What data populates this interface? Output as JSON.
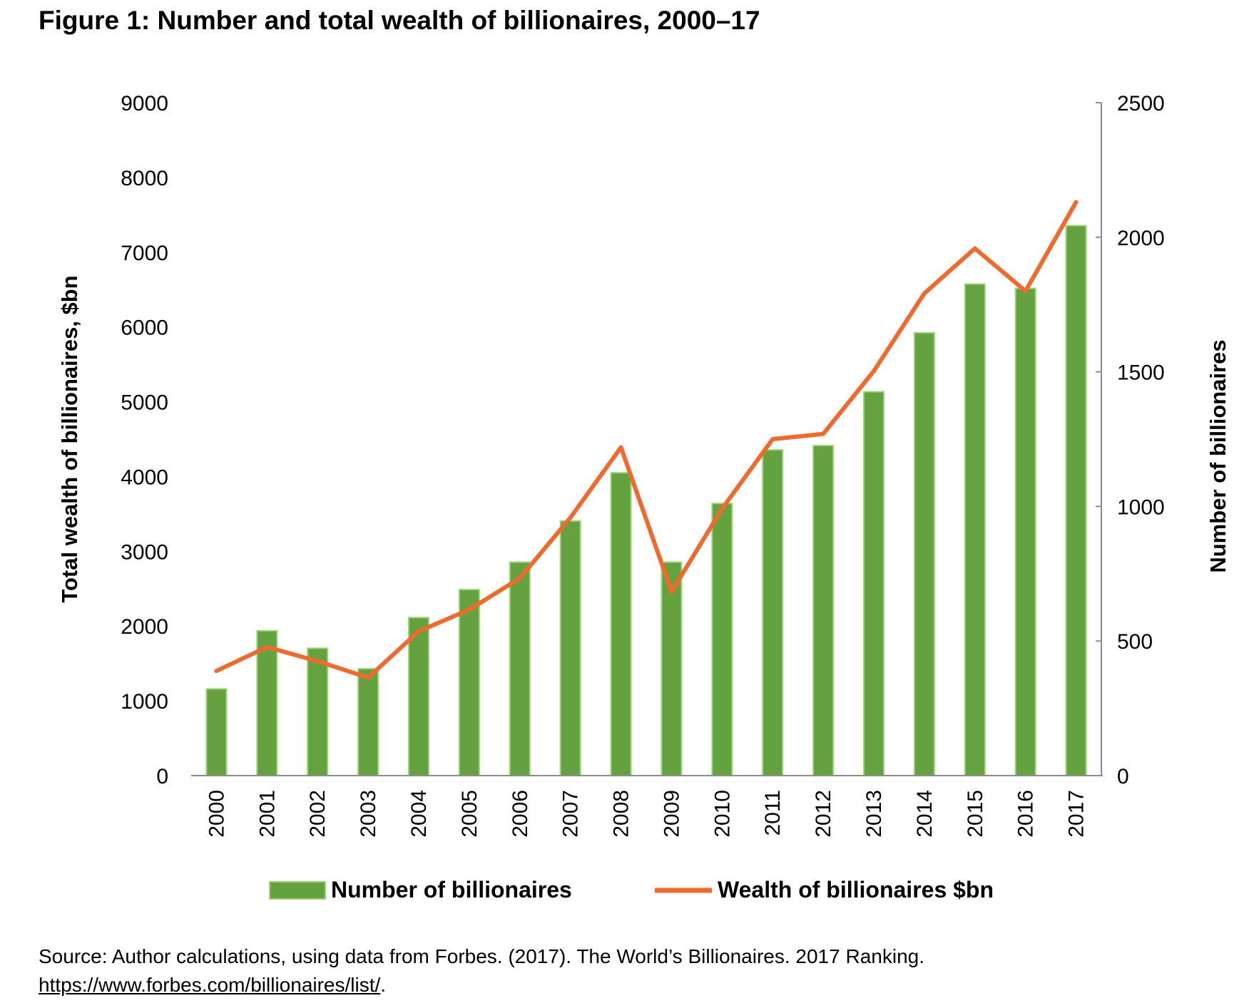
{
  "figure": {
    "title": "Figure 1: Number and total wealth of billionaires, 2000–17",
    "source_text": "Source: Author calculations, using data from Forbes. (2017). The World’s Billionaires. 2017 Ranking.",
    "source_url": "https://www.forbes.com/billionaires/list/",
    "source_end": "."
  },
  "chart_data": {
    "type": "bar",
    "categories": [
      "2000",
      "2001",
      "2002",
      "2003",
      "2004",
      "2005",
      "2006",
      "2007",
      "2008",
      "2009",
      "2010",
      "2011",
      "2012",
      "2013",
      "2014",
      "2015",
      "2016",
      "2017"
    ],
    "series": [
      {
        "name": "Number of billionaires",
        "kind": "bar",
        "axis": "right",
        "color": "#64A23F",
        "edge_color": "#9DD27A",
        "values": [
          322,
          538,
          473,
          397,
          587,
          691,
          793,
          946,
          1125,
          793,
          1011,
          1210,
          1226,
          1426,
          1645,
          1826,
          1810,
          2043
        ]
      },
      {
        "name": "Wealth of billionaires $bn",
        "kind": "line",
        "axis": "left",
        "color": "#EE6A2E",
        "values": [
          1400,
          1720,
          1530,
          1310,
          1930,
          2220,
          2640,
          3450,
          4390,
          2460,
          3570,
          4500,
          4570,
          5410,
          6450,
          7050,
          6480,
          7670
        ]
      }
    ],
    "y_left": {
      "label": "Total wealth of billionaires, $bn",
      "ylim": [
        0,
        9000
      ],
      "ticks": [
        0,
        1000,
        2000,
        3000,
        4000,
        5000,
        6000,
        7000,
        8000,
        9000
      ]
    },
    "y_right": {
      "label": "Number of billionaires",
      "ylim": [
        0,
        2500
      ],
      "ticks": [
        0,
        500,
        1000,
        1500,
        2000,
        2500
      ]
    },
    "grid": false,
    "legend_position": "bottom"
  }
}
